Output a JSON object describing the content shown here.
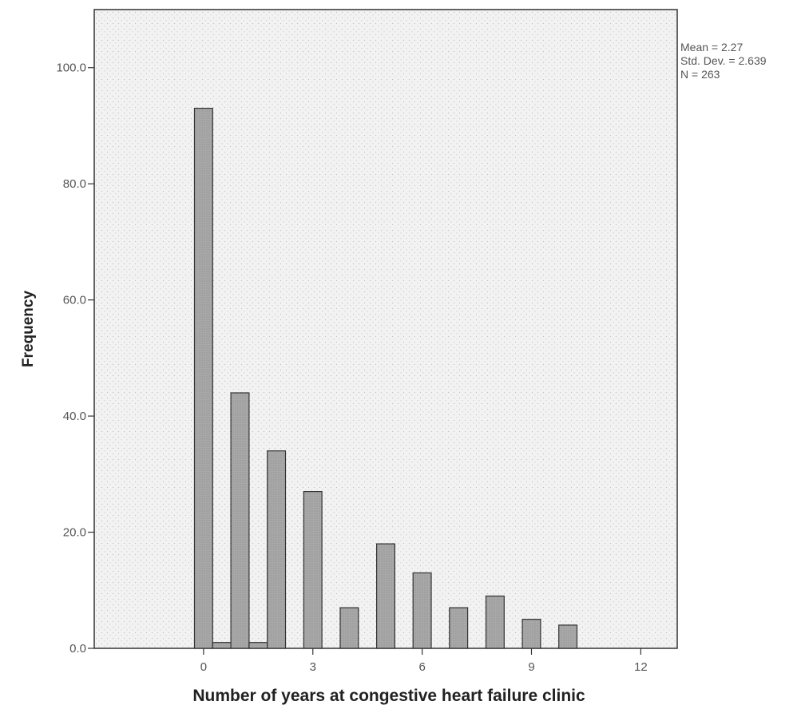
{
  "chart_data": {
    "type": "bar",
    "x": [
      0,
      0.5,
      1,
      1.5,
      2,
      3,
      4,
      5,
      6,
      7,
      8,
      9,
      10
    ],
    "values": [
      93,
      1,
      44,
      1,
      34,
      27,
      7,
      18,
      13,
      7,
      9,
      5,
      4
    ],
    "xlabel": "Number of years at congestive heart failure clinic",
    "ylabel": "Frequency",
    "xlim": [
      -3,
      13
    ],
    "ylim": [
      0,
      110
    ],
    "x_ticks": [
      {
        "value": 0,
        "label": "0"
      },
      {
        "value": 3,
        "label": "3"
      },
      {
        "value": 6,
        "label": "6"
      },
      {
        "value": 9,
        "label": "9"
      },
      {
        "value": 12,
        "label": "12"
      }
    ],
    "y_ticks": [
      {
        "value": 0,
        "label": "0.0"
      },
      {
        "value": 20,
        "label": "20.0"
      },
      {
        "value": 40,
        "label": "40.0"
      },
      {
        "value": 60,
        "label": "60.0"
      },
      {
        "value": 80,
        "label": "80.0"
      },
      {
        "value": 100,
        "label": "100.0"
      }
    ],
    "stats": [
      "Mean = 2.27",
      "Std. Dev. = 2.639",
      "N = 263"
    ],
    "grid": false,
    "bar_color": "#a8a8a8",
    "background": "stippled"
  }
}
